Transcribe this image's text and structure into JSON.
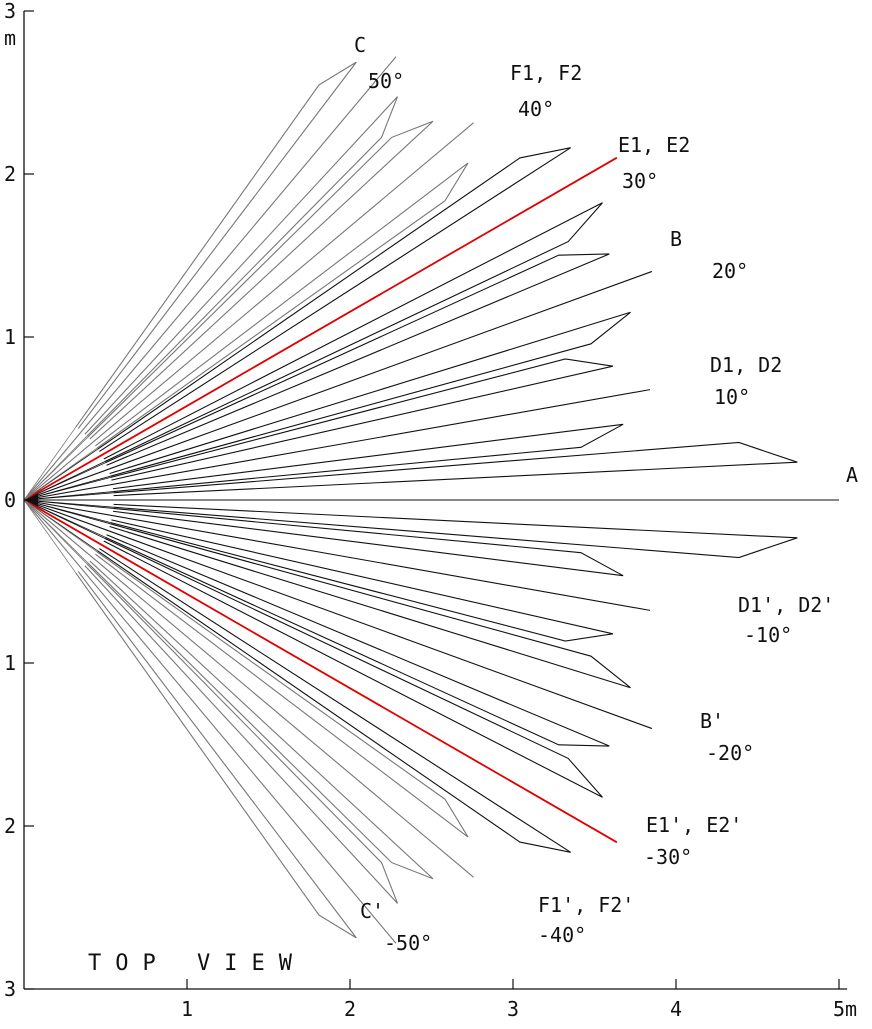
{
  "title": "TOP VIEW",
  "x_axis": {
    "unit": "m",
    "ticks": [
      {
        "v": 1,
        "label": "1"
      },
      {
        "v": 2,
        "label": "2"
      },
      {
        "v": 3,
        "label": "3"
      },
      {
        "v": 4,
        "label": "4"
      },
      {
        "v": 5,
        "label": "5m"
      }
    ]
  },
  "y_axis": {
    "unit": "m",
    "ticks": [
      {
        "v": 3,
        "label": "3",
        "unit": "m"
      },
      {
        "v": 2,
        "label": "2"
      },
      {
        "v": 1,
        "label": "1"
      },
      {
        "v": 0,
        "label": "0"
      },
      {
        "v": -1,
        "label": "1"
      },
      {
        "v": -2,
        "label": "2"
      },
      {
        "v": -3,
        "label": "3"
      }
    ]
  },
  "colors": {
    "highlight": "#e00000",
    "line": "#111111",
    "faint": "#777777"
  },
  "beams": [
    {
      "name": "A",
      "lines": [
        "A"
      ],
      "angle": 0,
      "length": 5.0
    },
    {
      "name": "D1,D2",
      "lines": [
        "D1, D2",
        "10°"
      ],
      "angle": 10,
      "length": 3.9
    },
    {
      "name": "B",
      "lines": [
        "B",
        "20°"
      ],
      "angle": 20,
      "length": 4.1
    },
    {
      "name": "E1,E2",
      "lines": [
        "E1, E2",
        "30°"
      ],
      "angle": 30,
      "length": 4.2,
      "highlight": true
    },
    {
      "name": "F1,F2",
      "lines": [
        "F1, F2",
        "40°"
      ],
      "angle": 40,
      "length": 3.6
    },
    {
      "name": "C",
      "lines": [
        "C",
        "50°"
      ],
      "angle": 50,
      "length": 3.55
    },
    {
      "name": "D1',D2'",
      "lines": [
        "D1', D2'",
        "-10°"
      ],
      "angle": -10,
      "length": 3.9
    },
    {
      "name": "B'",
      "lines": [
        "B'",
        "-20°"
      ],
      "angle": -20,
      "length": 4.1
    },
    {
      "name": "E1',E2'",
      "lines": [
        "E1', E2'",
        "-30°"
      ],
      "angle": -30,
      "length": 4.2,
      "highlight": true
    },
    {
      "name": "F1',F2'",
      "lines": [
        "F1', F2'",
        "-40°"
      ],
      "angle": -40,
      "length": 3.6
    },
    {
      "name": "C'",
      "lines": [
        "C'",
        "-50°"
      ],
      "angle": -50,
      "length": 3.55
    }
  ]
}
